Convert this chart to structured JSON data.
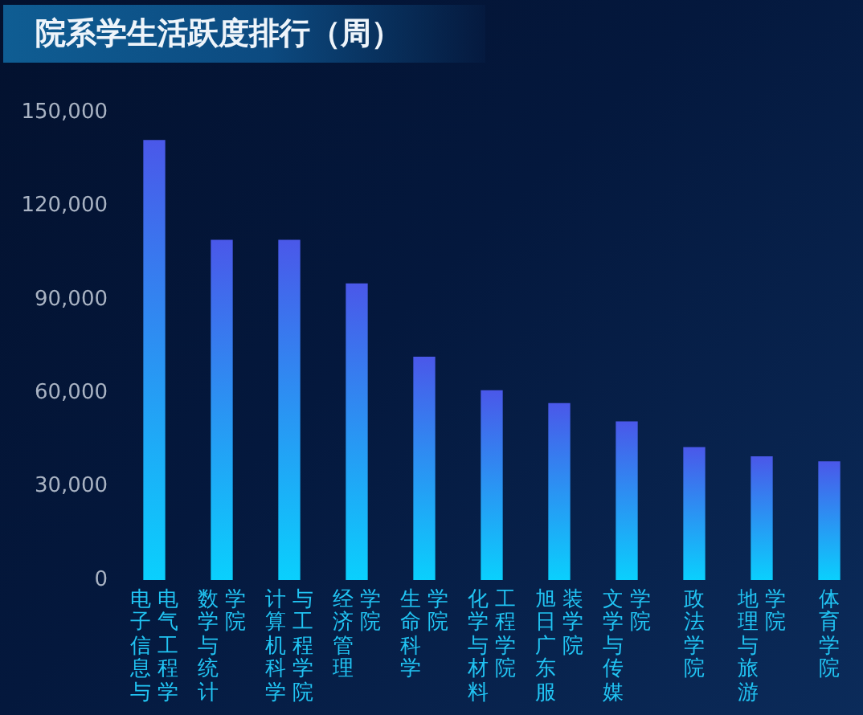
{
  "chart_data": {
    "type": "bar",
    "title": "院系学生活跃度排行（周）",
    "categories": [
      "电子信息与电气工程学",
      "数学与统计学院",
      "计算机科学与工程学院",
      "经济管理学院",
      "生命科学学院",
      "化学与材料工程学院",
      "旭日广东服装学院",
      "文学与传媒学院",
      "政法学院",
      "地理与旅游学院",
      "体育学院"
    ],
    "values": [
      141000,
      109000,
      109000,
      95000,
      71500,
      60700,
      56600,
      50700,
      42500,
      39500,
      37900
    ],
    "color": "#2a94f3",
    "ylim": [
      0,
      150000
    ],
    "yticks": [
      {
        "value": 0,
        "label": "0"
      },
      {
        "value": 30000,
        "label": "30,000"
      },
      {
        "value": 60000,
        "label": "60,000"
      },
      {
        "value": 90000,
        "label": "90,000"
      },
      {
        "value": 120000,
        "label": "120,000"
      },
      {
        "value": 150000,
        "label": "150,000"
      }
    ],
    "grid": false
  }
}
